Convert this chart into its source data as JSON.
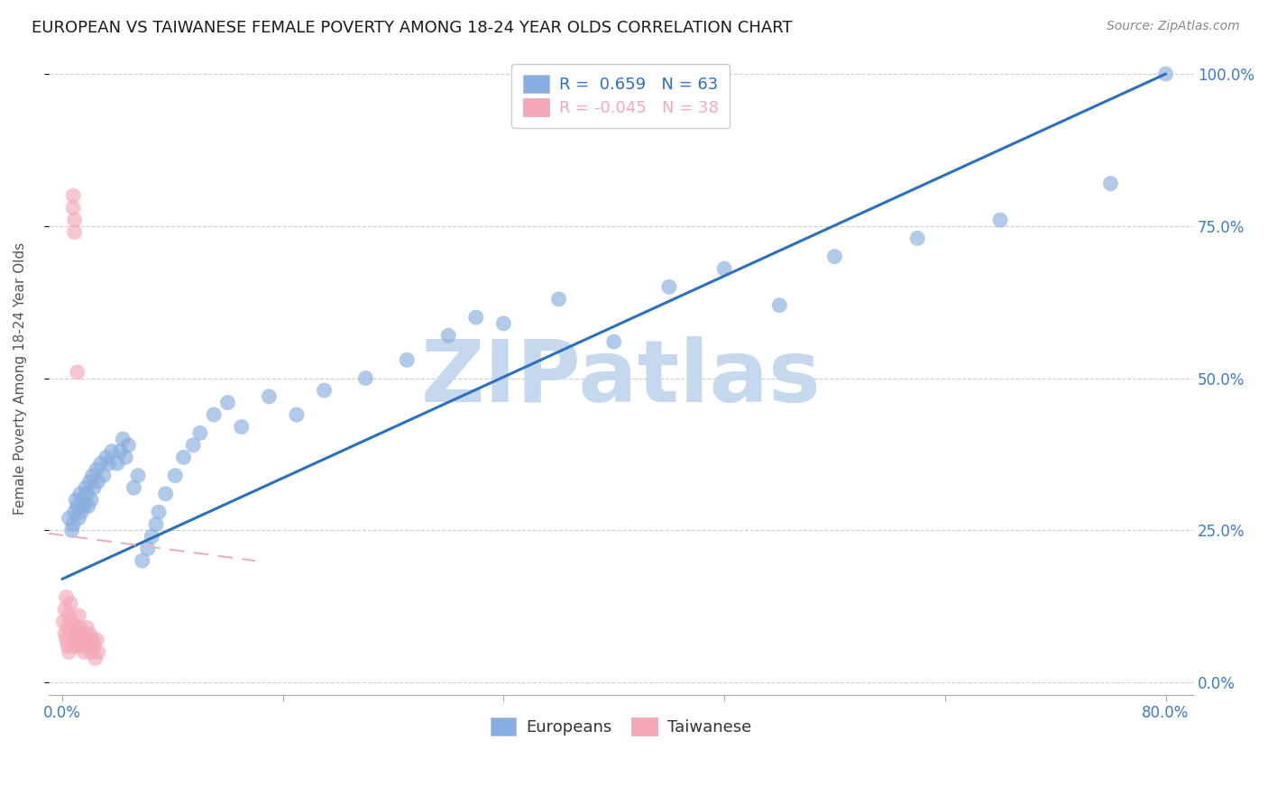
{
  "title": "EUROPEAN VS TAIWANESE FEMALE POVERTY AMONG 18-24 YEAR OLDS CORRELATION CHART",
  "source": "Source: ZipAtlas.com",
  "ylabel": "Female Poverty Among 18-24 Year Olds",
  "xlim": [
    -0.01,
    0.82
  ],
  "ylim": [
    -0.02,
    1.02
  ],
  "xticks": [
    0.0,
    0.16,
    0.32,
    0.48,
    0.64,
    0.8
  ],
  "xtick_labels": [
    "0.0%",
    "",
    "",
    "",
    "",
    "80.0%"
  ],
  "yticks_right": [
    0.0,
    0.25,
    0.5,
    0.75,
    1.0
  ],
  "ytick_labels_right": [
    "0.0%",
    "25.0%",
    "50.0%",
    "75.0%",
    "100.0%"
  ],
  "european_R": 0.659,
  "european_N": 63,
  "taiwanese_R": -0.045,
  "taiwanese_N": 38,
  "european_color": "#87AEDE",
  "taiwanese_color": "#F4A8B8",
  "european_line_color": "#2B6FBF",
  "taiwanese_line_color": "#E8B0C0",
  "watermark": "ZIPatlas",
  "watermark_color": "#C5D8EE",
  "legend_label_european": "Europeans",
  "legend_label_taiwanese": "Taiwanese",
  "european_x": [
    0.005,
    0.007,
    0.008,
    0.009,
    0.01,
    0.011,
    0.012,
    0.013,
    0.014,
    0.015,
    0.016,
    0.017,
    0.018,
    0.019,
    0.02,
    0.021,
    0.022,
    0.023,
    0.025,
    0.026,
    0.028,
    0.03,
    0.032,
    0.034,
    0.036,
    0.04,
    0.042,
    0.044,
    0.046,
    0.048,
    0.052,
    0.055,
    0.058,
    0.062,
    0.065,
    0.068,
    0.07,
    0.075,
    0.082,
    0.088,
    0.095,
    0.1,
    0.11,
    0.12,
    0.13,
    0.15,
    0.17,
    0.19,
    0.22,
    0.25,
    0.28,
    0.3,
    0.32,
    0.36,
    0.4,
    0.44,
    0.48,
    0.52,
    0.56,
    0.62,
    0.68,
    0.76,
    0.8
  ],
  "european_y": [
    0.27,
    0.25,
    0.26,
    0.28,
    0.3,
    0.29,
    0.27,
    0.31,
    0.28,
    0.3,
    0.29,
    0.32,
    0.31,
    0.29,
    0.33,
    0.3,
    0.34,
    0.32,
    0.35,
    0.33,
    0.36,
    0.34,
    0.37,
    0.36,
    0.38,
    0.36,
    0.38,
    0.4,
    0.37,
    0.39,
    0.32,
    0.34,
    0.2,
    0.22,
    0.24,
    0.26,
    0.28,
    0.31,
    0.34,
    0.37,
    0.39,
    0.41,
    0.44,
    0.46,
    0.42,
    0.47,
    0.44,
    0.48,
    0.5,
    0.53,
    0.57,
    0.6,
    0.59,
    0.63,
    0.56,
    0.65,
    0.68,
    0.62,
    0.7,
    0.73,
    0.76,
    0.82,
    1.0
  ],
  "taiwanese_x": [
    0.001,
    0.002,
    0.002,
    0.003,
    0.003,
    0.004,
    0.004,
    0.005,
    0.005,
    0.006,
    0.006,
    0.007,
    0.007,
    0.008,
    0.008,
    0.009,
    0.009,
    0.01,
    0.01,
    0.011,
    0.011,
    0.012,
    0.012,
    0.013,
    0.013,
    0.014,
    0.015,
    0.016,
    0.017,
    0.018,
    0.019,
    0.02,
    0.021,
    0.022,
    0.023,
    0.024,
    0.025,
    0.026
  ],
  "taiwanese_y": [
    0.1,
    0.08,
    0.12,
    0.07,
    0.14,
    0.09,
    0.06,
    0.11,
    0.05,
    0.08,
    0.13,
    0.06,
    0.1,
    0.78,
    0.8,
    0.76,
    0.74,
    0.07,
    0.09,
    0.06,
    0.51,
    0.08,
    0.11,
    0.07,
    0.09,
    0.06,
    0.08,
    0.05,
    0.07,
    0.09,
    0.06,
    0.08,
    0.05,
    0.07,
    0.06,
    0.04,
    0.07,
    0.05
  ]
}
